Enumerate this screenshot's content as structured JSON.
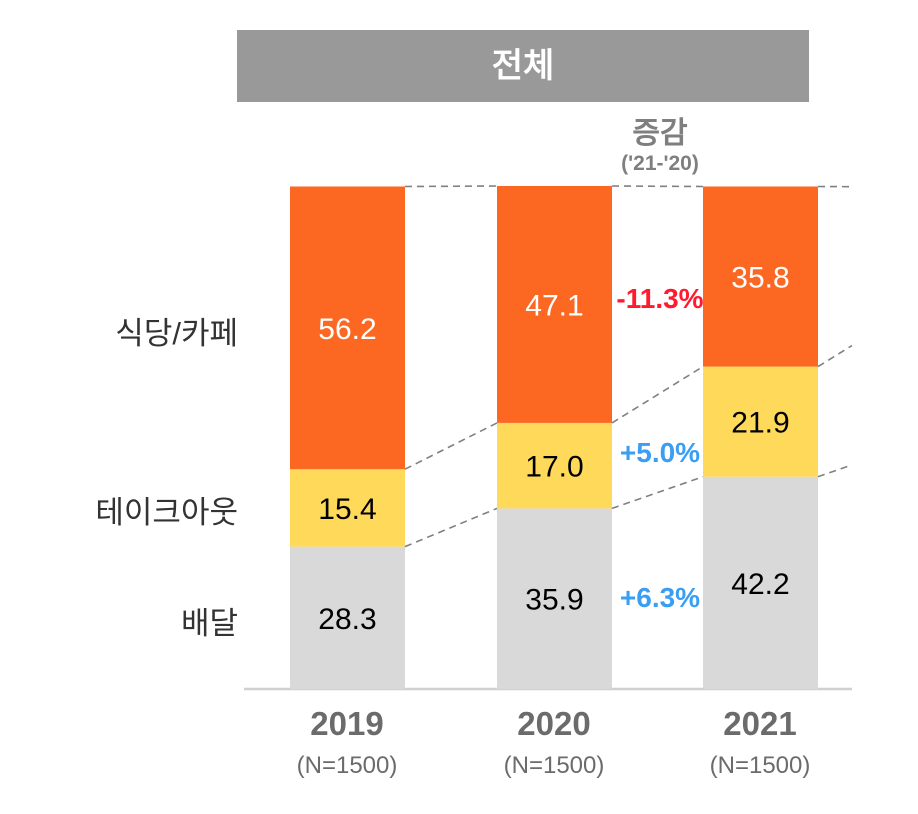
{
  "chart_data": {
    "type": "bar",
    "stacked": true,
    "normalized_percent": true,
    "title": "전체",
    "change_header": "증감",
    "change_subheader": "('21-'20)",
    "categories": [
      "2019",
      "2020",
      "2021"
    ],
    "category_sublabels": [
      "(N=1500)",
      "(N=1500)",
      "(N=1500)"
    ],
    "series": [
      {
        "name": "배달",
        "color": "#d9d9d9",
        "label_color": "#000000",
        "values": [
          28.3,
          35.9,
          42.2
        ]
      },
      {
        "name": "테이크아웃",
        "color": "#ffd95a",
        "label_color": "#000000",
        "values": [
          15.4,
          17.0,
          21.9
        ]
      },
      {
        "name": "식당/카페",
        "color": "#fc6722",
        "label_color": "#ffffff",
        "values": [
          56.2,
          47.1,
          35.8
        ]
      }
    ],
    "value_labels": {
      "배달": [
        "28.3",
        "35.9",
        "42.2"
      ],
      "테이크아웃": [
        "15.4",
        "17.0",
        "21.9"
      ],
      "식당/카페": [
        "56.2",
        "47.1",
        "35.8"
      ]
    },
    "changes_2021_vs_2020": [
      {
        "series": "식당/카페",
        "label": "-11.3%",
        "color": "#ff1a2e"
      },
      {
        "series": "테이크아웃",
        "label": "+5.0%",
        "color": "#3a9ef5"
      },
      {
        "series": "배달",
        "label": "+6.3%",
        "color": "#3a9ef5"
      }
    ],
    "ylim": [
      0,
      100
    ],
    "grid": false,
    "legend": "left row labels",
    "connector_lines": "dashed"
  },
  "row_labels": [
    "식당/카페",
    "테이크아웃",
    "배달"
  ]
}
